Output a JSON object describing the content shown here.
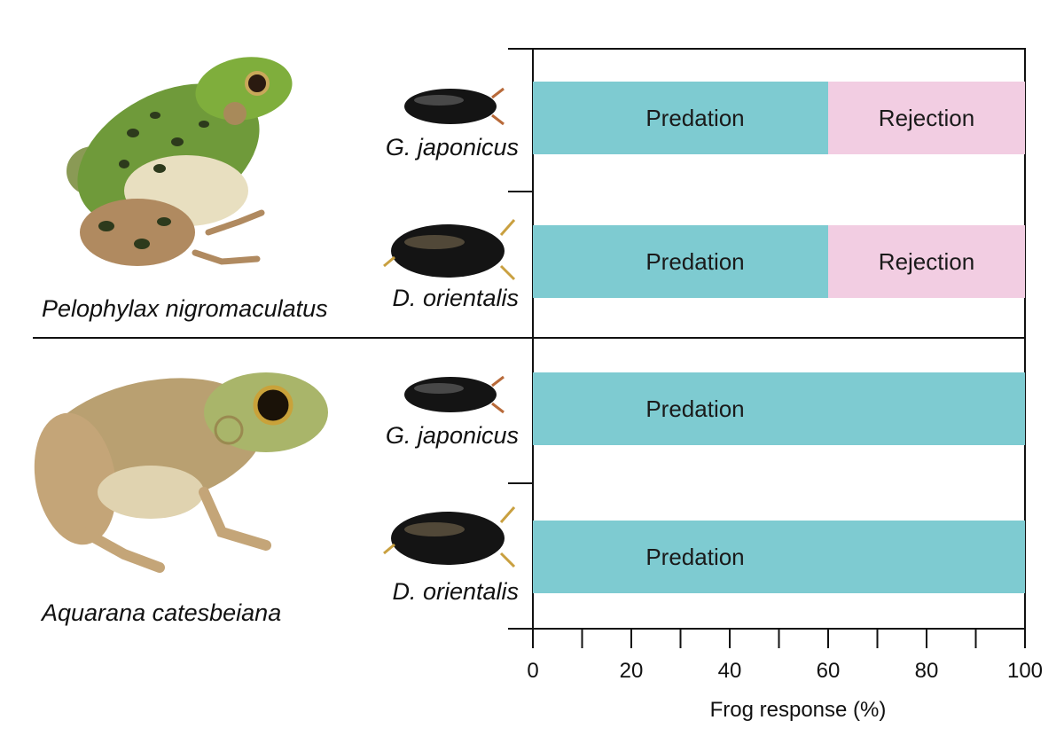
{
  "colors": {
    "predation": "#7ecbd1",
    "rejection": "#f2cde2",
    "axis": "#111111",
    "frog1_body": "#6f9a3a",
    "frog2_body": "#b9a071",
    "beetle": "#141414"
  },
  "groups": [
    {
      "frog_name": "Pelophylax nigromaculatus",
      "frog_icon": "green-spotted-frog-photo",
      "beetles": [
        {
          "name_genus": "G.",
          "name_species": " japonicus",
          "beetle_icon": "small-water-beetle-photo"
        },
        {
          "name_genus": "D.",
          "name_species": " orientalis",
          "beetle_icon": "large-diving-beetle-photo"
        }
      ]
    },
    {
      "frog_name": "Aquarana catesbeiana",
      "frog_icon": "bullfrog-photo",
      "beetles": [
        {
          "name_genus": "G.",
          "name_species": " japonicus",
          "beetle_icon": "small-water-beetle-photo"
        },
        {
          "name_genus": "D.",
          "name_species": " orientalis",
          "beetle_icon": "large-diving-beetle-photo"
        }
      ]
    }
  ],
  "chart_data": {
    "type": "bar",
    "orientation": "horizontal",
    "stacked": true,
    "categories": [
      "Pelophylax nigromaculatus – G. japonicus",
      "Pelophylax nigromaculatus – D. orientalis",
      "Aquarana catesbeiana – G. japonicus",
      "Aquarana catesbeiana – D. orientalis"
    ],
    "series": [
      {
        "name": "Predation",
        "values": [
          60,
          60,
          100,
          100
        ]
      },
      {
        "name": "Rejection",
        "values": [
          40,
          40,
          0,
          0
        ]
      }
    ],
    "xlabel": "Frog response (%)",
    "xlim": [
      0,
      100
    ],
    "xticks": [
      0,
      20,
      40,
      60,
      80,
      100
    ],
    "xticks_minor": [
      10,
      30,
      50,
      70,
      90
    ],
    "grid": false,
    "legend": "none (labels inside bars)"
  }
}
